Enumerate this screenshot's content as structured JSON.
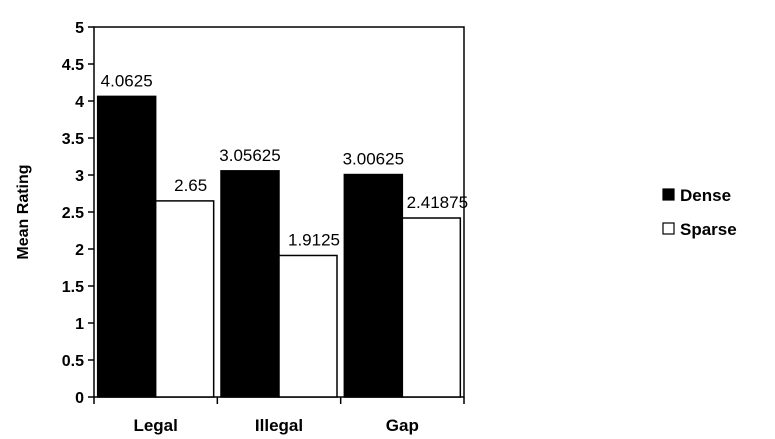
{
  "chart_data": {
    "type": "bar",
    "title": "",
    "xlabel": "",
    "ylabel": "Mean Rating",
    "categories": [
      "Legal",
      "Illegal",
      "Gap"
    ],
    "series": [
      {
        "name": "Dense",
        "color": "#000000",
        "values": [
          4.0625,
          3.05625,
          3.00625
        ]
      },
      {
        "name": "Sparse",
        "color": "#ffffff",
        "values": [
          2.65,
          1.9125,
          2.41875
        ]
      }
    ],
    "data_labels": [
      [
        "4.0625",
        "3.05625",
        "3.00625"
      ],
      [
        "2.65",
        "1.9125",
        "2.41875"
      ]
    ],
    "ylim": [
      0,
      5
    ],
    "yticks": [
      "0",
      "0.5",
      "1",
      "1.5",
      "2",
      "2.5",
      "3",
      "3.5",
      "4",
      "4.5",
      "5"
    ],
    "grid": false,
    "legend_position": "right"
  }
}
